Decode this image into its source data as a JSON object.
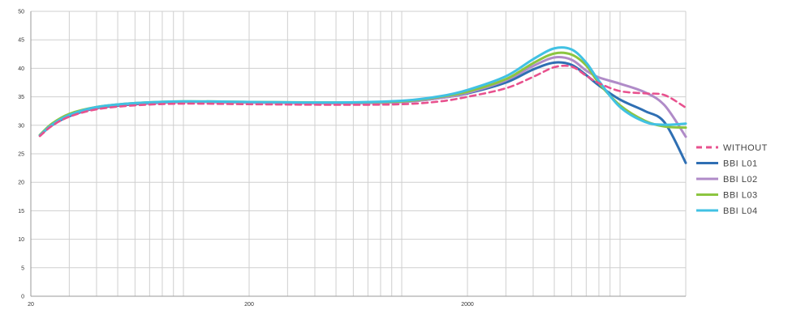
{
  "chart_data": {
    "type": "line",
    "xscale": "log",
    "xlim": [
      20,
      20000
    ],
    "ylim": [
      0,
      50
    ],
    "yticks": [
      0,
      5,
      10,
      15,
      20,
      25,
      30,
      35,
      40,
      45,
      50
    ],
    "xtick_labels": [
      {
        "value": 20,
        "label": "20"
      },
      {
        "value": 200,
        "label": "200"
      },
      {
        "value": 2000,
        "label": "2000"
      }
    ],
    "grid": true,
    "legend_position": "right",
    "series": [
      {
        "name": "WITHOUT",
        "color": "#e8518e",
        "dash": true,
        "x": [
          22,
          25,
          30,
          40,
          60,
          100,
          200,
          500,
          1000,
          1500,
          2000,
          3000,
          4000,
          5000,
          6000,
          7000,
          8000,
          10000,
          13000,
          16000,
          20000
        ],
        "y": [
          28.1,
          29.9,
          31.5,
          32.8,
          33.5,
          33.8,
          33.7,
          33.6,
          33.7,
          34.2,
          35.0,
          36.5,
          38.5,
          40.2,
          40.3,
          38.7,
          37.4,
          36.0,
          35.6,
          35.3,
          33.1
        ]
      },
      {
        "name": "BBI L01",
        "color": "#2f6fb3",
        "dash": false,
        "x": [
          22,
          25,
          30,
          40,
          60,
          100,
          200,
          500,
          1000,
          1500,
          2000,
          3000,
          4000,
          5000,
          6000,
          7000,
          8000,
          10000,
          13000,
          16000,
          20000
        ],
        "y": [
          28.2,
          30.0,
          31.6,
          33.0,
          33.7,
          34.1,
          34.0,
          33.9,
          34.1,
          34.8,
          35.6,
          37.5,
          39.8,
          41.0,
          40.6,
          38.8,
          37.0,
          34.5,
          32.5,
          30.5,
          23.4
        ]
      },
      {
        "name": "BBI L02",
        "color": "#b08bc8",
        "dash": false,
        "x": [
          22,
          25,
          30,
          40,
          60,
          100,
          200,
          500,
          1000,
          1500,
          2000,
          3000,
          4000,
          5000,
          6000,
          7000,
          8000,
          10000,
          13000,
          16000,
          20000
        ],
        "y": [
          28.3,
          30.2,
          31.8,
          33.1,
          33.8,
          34.1,
          34.0,
          33.9,
          34.1,
          34.8,
          35.7,
          37.9,
          40.4,
          41.9,
          41.5,
          39.6,
          38.4,
          37.3,
          35.8,
          33.5,
          28.0
        ]
      },
      {
        "name": "BBI L03",
        "color": "#8cc540",
        "dash": false,
        "x": [
          22,
          25,
          30,
          40,
          60,
          100,
          200,
          500,
          1000,
          1500,
          2000,
          3000,
          4000,
          5000,
          6000,
          7000,
          8000,
          10000,
          13000,
          16000,
          20000
        ],
        "y": [
          28.3,
          30.3,
          32.0,
          33.2,
          33.9,
          34.2,
          34.1,
          34.0,
          34.2,
          35.0,
          35.9,
          38.1,
          40.9,
          42.6,
          42.4,
          40.5,
          37.4,
          33.5,
          30.8,
          29.8,
          29.6
        ]
      },
      {
        "name": "BBI L04",
        "color": "#41c1e3",
        "dash": false,
        "x": [
          22,
          25,
          30,
          40,
          60,
          100,
          200,
          500,
          1000,
          1500,
          2000,
          3000,
          4000,
          5000,
          6000,
          7000,
          8000,
          10000,
          13000,
          16000,
          20000
        ],
        "y": [
          28.2,
          30.1,
          31.8,
          33.2,
          33.9,
          34.2,
          34.1,
          34.0,
          34.3,
          35.1,
          36.2,
          38.6,
          41.6,
          43.5,
          43.3,
          41.0,
          37.8,
          33.2,
          30.6,
          30.1,
          30.3
        ]
      }
    ]
  }
}
